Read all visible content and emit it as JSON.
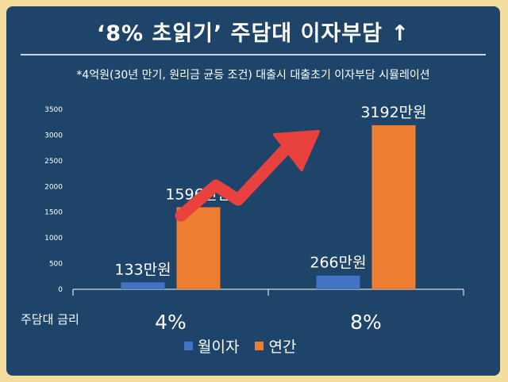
{
  "title": "‘8% 초읽기’  주담대 이자부담 ↑",
  "subtitle": "*4억원(30년 만기, 원리금 균등 조건) 대출시 대출초기 이자부담 시뮬레이션",
  "colors": {
    "background": "#1e4569",
    "border": "#f3dea0",
    "monthly": "#4472c4",
    "annual": "#ed7d31",
    "arrow": "#e8413e"
  },
  "chart_data": {
    "type": "bar",
    "categories": [
      "4%",
      "8%"
    ],
    "xlabel": "주담대 금리",
    "ylim": [
      0,
      3500
    ],
    "yticks": [
      0,
      500,
      1000,
      1500,
      2000,
      2500,
      3000,
      3500
    ],
    "grid": false,
    "legend_position": "bottom",
    "series": [
      {
        "name": "월이자",
        "values": [
          133,
          266
        ],
        "labels": [
          "133만원",
          "266만원"
        ],
        "color": "#4472c4"
      },
      {
        "name": "연간",
        "values": [
          1596,
          3192
        ],
        "labels": [
          "1596만원",
          "3192만원"
        ],
        "color": "#ed7d31"
      }
    ]
  }
}
